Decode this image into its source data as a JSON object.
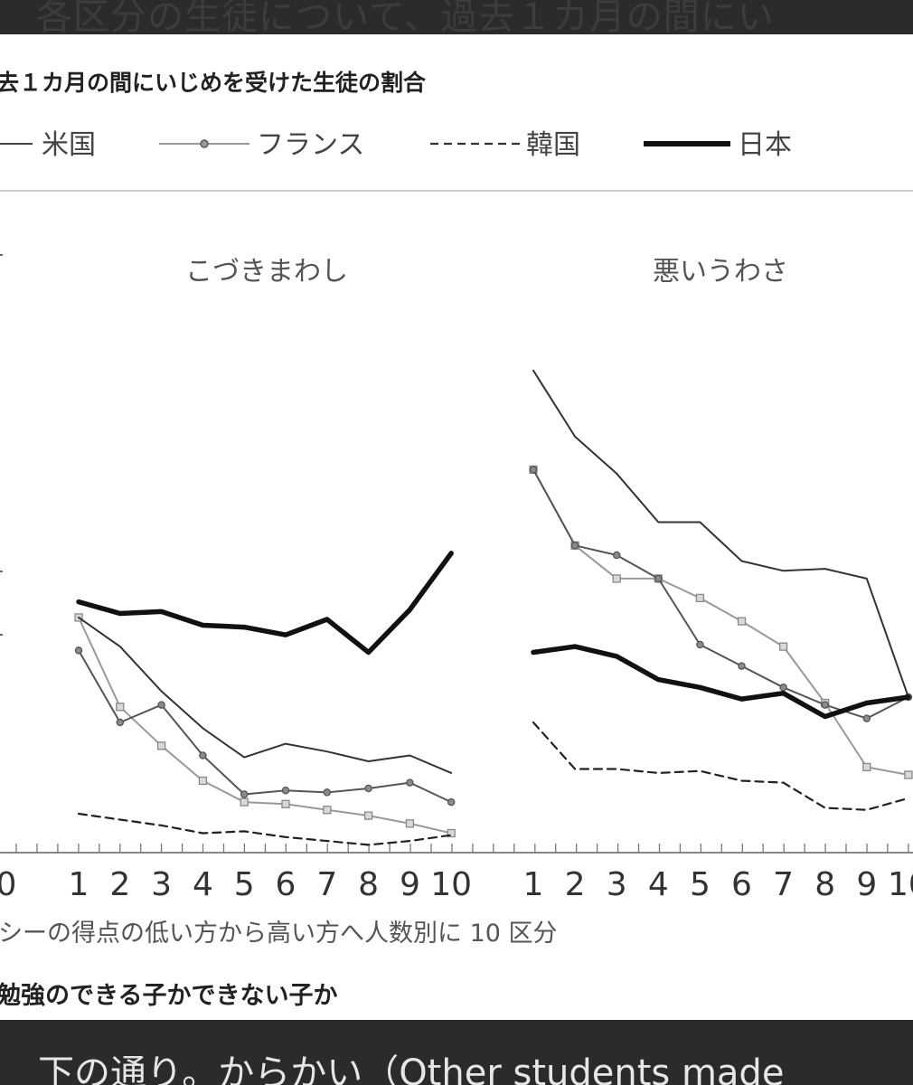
{
  "page": {
    "top_caption": "各区分の生徒について、過去１カ月の間にい",
    "bottom_caption": "下の通り。からかい（Other students made"
  },
  "chart_data": {
    "type": "line",
    "title": "去１カ月の間にいじめを受けた生徒の割合",
    "legend": [
      {
        "name": "米国",
        "style": "thin"
      },
      {
        "name": "フランス",
        "style": "circle-marker"
      },
      {
        "name": "韓国",
        "style": "dashed"
      },
      {
        "name": "日本",
        "style": "thick"
      }
    ],
    "legend_position": "top",
    "x_axis_tick_zero": "0",
    "categories": [
      "1",
      "2",
      "3",
      "4",
      "5",
      "6",
      "7",
      "8",
      "9",
      "10"
    ],
    "xlabel": "シーの得点の低い方から高い方へ人数別に 10 区分",
    "footer": "勉強のできる子かできない子か",
    "panels": [
      {
        "title": "こづきまわし",
        "series": [
          {
            "name": "米国",
            "values": [
              12.1,
              10.6,
              8.3,
              6.4,
              4.9,
              5.6,
              5.2,
              4.7,
              5.0,
              4.1
            ]
          },
          {
            "name": "フランス",
            "values": [
              10.4,
              6.7,
              7.6,
              5.0,
              3.0,
              3.2,
              3.1,
              3.3,
              3.6,
              2.6
            ]
          },
          {
            "name": "",
            "values": [
              12.1,
              7.5,
              5.5,
              3.7,
              2.6,
              2.5,
              2.2,
              1.9,
              1.5,
              1.0
            ]
          },
          {
            "name": "韓国",
            "values": [
              2.0,
              1.7,
              1.4,
              1.0,
              1.1,
              0.8,
              0.6,
              0.4,
              0.6,
              0.9
            ]
          },
          {
            "name": "日本",
            "values": [
              12.9,
              12.3,
              12.4,
              11.7,
              11.6,
              11.2,
              12.0,
              10.3,
              12.5,
              15.4
            ]
          }
        ]
      },
      {
        "title": "悪いうわさ",
        "series": [
          {
            "name": "米国",
            "values": [
              24.8,
              21.4,
              19.5,
              17.0,
              17.0,
              15.0,
              14.5,
              14.6,
              14.1,
              8.0
            ]
          },
          {
            "name": "フランス",
            "values": [
              19.7,
              15.8,
              15.3,
              14.1,
              10.7,
              9.6,
              8.5,
              7.6,
              6.9,
              8.0
            ]
          },
          {
            "name": "",
            "values": [
              19.7,
              15.8,
              14.1,
              14.1,
              13.1,
              11.9,
              10.6,
              7.7,
              4.4,
              4.0
            ]
          },
          {
            "name": "韓国",
            "values": [
              6.7,
              4.3,
              4.3,
              4.1,
              4.2,
              3.7,
              3.6,
              2.3,
              2.2,
              2.8
            ]
          },
          {
            "name": "日本",
            "values": [
              10.3,
              10.6,
              10.1,
              8.9,
              8.5,
              7.9,
              8.2,
              7.0,
              7.7,
              8.0
            ]
          }
        ]
      }
    ],
    "ylim": [
      0,
      26
    ],
    "grid": false
  }
}
